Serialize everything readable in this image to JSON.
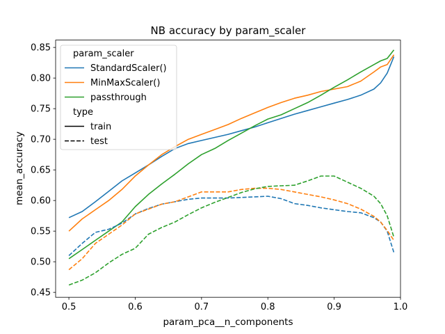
{
  "chart_data": {
    "type": "line",
    "title": "NB accuracy by param_scaler",
    "xlabel": "param_pca__n_components",
    "ylabel": "mean_accuracy",
    "xlim": [
      0.48,
      1.0
    ],
    "ylim": [
      0.442,
      0.862
    ],
    "xticks": [
      0.5,
      0.6,
      0.7,
      0.8,
      0.9,
      1.0
    ],
    "xtick_labels": [
      "0.5",
      "0.6",
      "0.7",
      "0.8",
      "0.9",
      "1.0"
    ],
    "yticks": [
      0.45,
      0.5,
      0.55,
      0.6,
      0.65,
      0.7,
      0.75,
      0.8,
      0.85
    ],
    "ytick_labels": [
      "0.45",
      "0.50",
      "0.55",
      "0.60",
      "0.65",
      "0.70",
      "0.75",
      "0.80",
      "0.85"
    ],
    "grid": false,
    "legend": {
      "placement": "top-left",
      "hue_title": "param_scaler",
      "style_title": "type",
      "hue_entries": [
        {
          "name": "StandardScaler()",
          "color": "#1f77b4"
        },
        {
          "name": "MinMaxScaler()",
          "color": "#ff7f0e"
        },
        {
          "name": "passthrough",
          "color": "#2ca02c"
        }
      ],
      "style_entries": [
        {
          "name": "train",
          "dash": "solid"
        },
        {
          "name": "test",
          "dash": "dashed"
        }
      ]
    },
    "x": [
      0.5,
      0.52,
      0.54,
      0.56,
      0.58,
      0.6,
      0.62,
      0.64,
      0.66,
      0.68,
      0.7,
      0.72,
      0.74,
      0.76,
      0.78,
      0.8,
      0.82,
      0.84,
      0.86,
      0.88,
      0.9,
      0.92,
      0.94,
      0.96,
      0.97,
      0.98,
      0.99
    ],
    "series": [
      {
        "name": "StandardScaler()",
        "type": "train",
        "color": "#1f77b4",
        "dash": "solid",
        "values": [
          0.572,
          0.582,
          0.598,
          0.615,
          0.632,
          0.645,
          0.658,
          0.672,
          0.685,
          0.693,
          0.698,
          0.703,
          0.708,
          0.714,
          0.72,
          0.727,
          0.734,
          0.741,
          0.747,
          0.753,
          0.759,
          0.765,
          0.772,
          0.782,
          0.792,
          0.808,
          0.835
        ]
      },
      {
        "name": "MinMaxScaler()",
        "type": "train",
        "color": "#ff7f0e",
        "dash": "solid",
        "values": [
          0.55,
          0.57,
          0.585,
          0.6,
          0.618,
          0.64,
          0.658,
          0.675,
          0.688,
          0.7,
          0.708,
          0.716,
          0.724,
          0.734,
          0.743,
          0.752,
          0.76,
          0.767,
          0.772,
          0.778,
          0.782,
          0.786,
          0.795,
          0.81,
          0.818,
          0.822,
          0.838
        ]
      },
      {
        "name": "passthrough",
        "type": "train",
        "color": "#2ca02c",
        "dash": "solid",
        "values": [
          0.505,
          0.52,
          0.535,
          0.55,
          0.565,
          0.59,
          0.61,
          0.627,
          0.643,
          0.66,
          0.675,
          0.685,
          0.698,
          0.71,
          0.722,
          0.733,
          0.74,
          0.75,
          0.76,
          0.772,
          0.785,
          0.797,
          0.81,
          0.822,
          0.828,
          0.832,
          0.846
        ]
      },
      {
        "name": "StandardScaler()",
        "type": "test",
        "color": "#1f77b4",
        "dash": "dashed",
        "values": [
          0.51,
          0.53,
          0.548,
          0.553,
          0.563,
          0.578,
          0.587,
          0.594,
          0.598,
          0.602,
          0.604,
          0.604,
          0.604,
          0.605,
          0.606,
          0.607,
          0.603,
          0.595,
          0.592,
          0.588,
          0.585,
          0.582,
          0.58,
          0.572,
          0.565,
          0.55,
          0.515
        ]
      },
      {
        "name": "MinMaxScaler()",
        "type": "test",
        "color": "#ff7f0e",
        "dash": "dashed",
        "values": [
          0.487,
          0.505,
          0.53,
          0.545,
          0.56,
          0.578,
          0.586,
          0.594,
          0.598,
          0.606,
          0.614,
          0.614,
          0.614,
          0.618,
          0.62,
          0.62,
          0.618,
          0.614,
          0.61,
          0.606,
          0.601,
          0.595,
          0.586,
          0.574,
          0.565,
          0.551,
          0.535
        ]
      },
      {
        "name": "passthrough",
        "type": "test",
        "color": "#2ca02c",
        "dash": "dashed",
        "values": [
          0.462,
          0.47,
          0.482,
          0.498,
          0.512,
          0.522,
          0.545,
          0.556,
          0.565,
          0.577,
          0.588,
          0.597,
          0.605,
          0.613,
          0.619,
          0.623,
          0.624,
          0.625,
          0.632,
          0.64,
          0.64,
          0.63,
          0.62,
          0.607,
          0.595,
          0.575,
          0.54
        ]
      }
    ]
  }
}
